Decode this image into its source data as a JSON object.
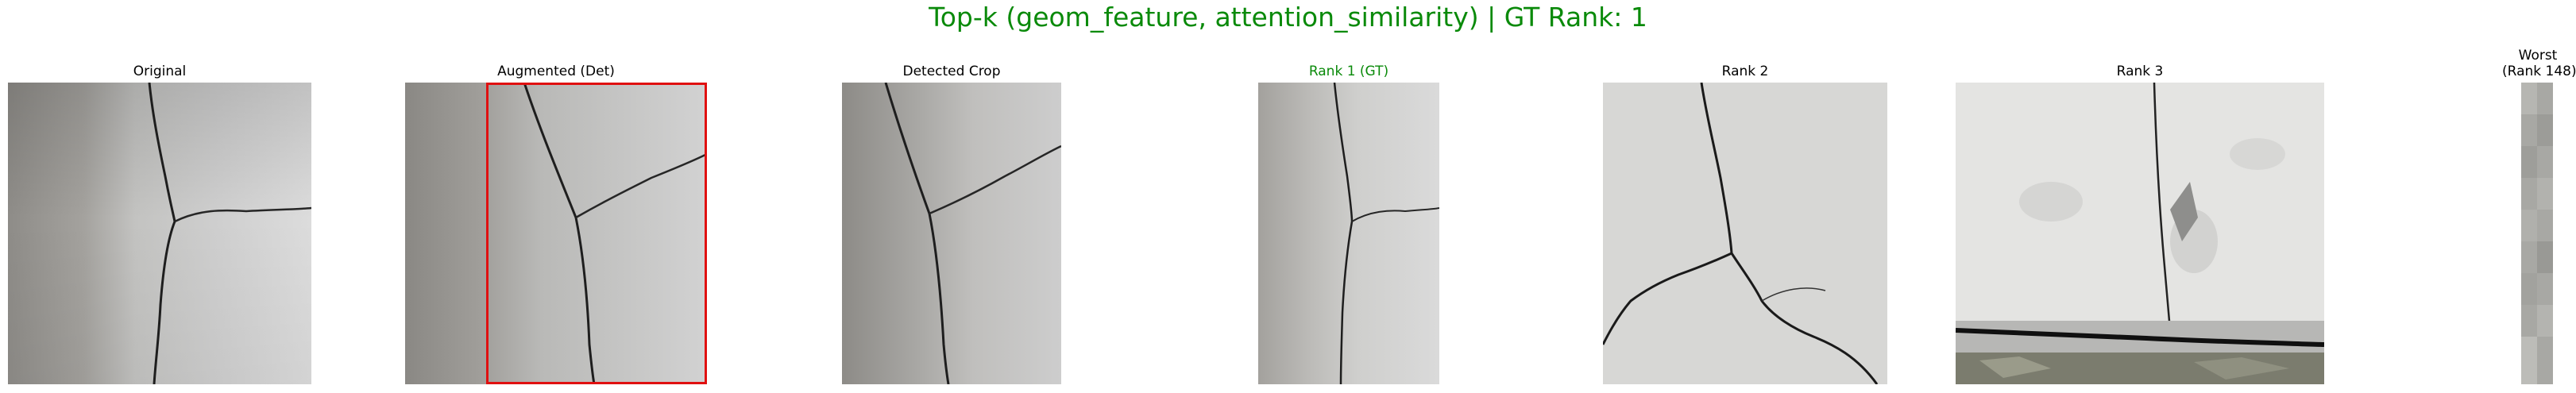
{
  "figure": {
    "title": "Top-k (geom_feature, attention_similarity) | GT Rank: 1",
    "title_color": "#0a8a0a",
    "gt_color": "#0a8a0a",
    "detection_box_color": "#e01010"
  },
  "panels": [
    {
      "title": "Original"
    },
    {
      "title": "Augmented (Det)"
    },
    {
      "title": "Detected Crop"
    },
    {
      "title": "Rank 1 (GT)"
    },
    {
      "title": "Rank 2"
    },
    {
      "title": "Rank 3"
    },
    {
      "title_line1": "Worst",
      "title_line2": "(Rank 148)"
    }
  ]
}
